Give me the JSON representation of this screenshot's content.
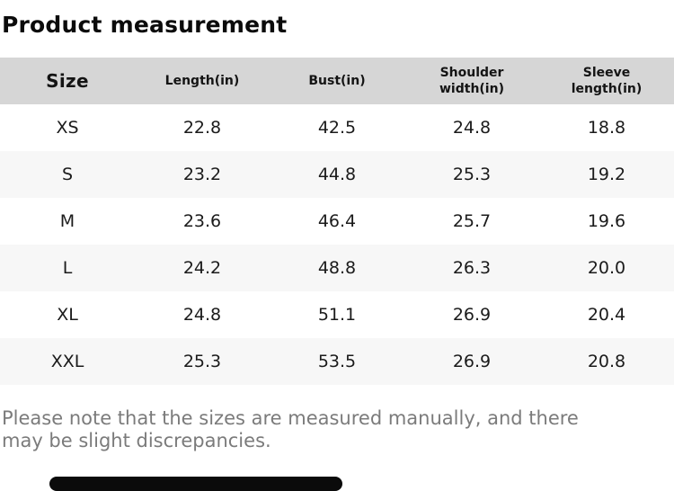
{
  "chart_data": {
    "type": "table",
    "title": "Product measurement",
    "columns": [
      "Size",
      "Length(in)",
      "Bust(in)",
      "Shoulder\nwidth(in)",
      "Sleeve\nlength(in)"
    ],
    "rows": [
      [
        "XS",
        "22.8",
        "42.5",
        "24.8",
        "18.8"
      ],
      [
        "S",
        "23.2",
        "44.8",
        "25.3",
        "19.2"
      ],
      [
        "M",
        "23.6",
        "46.4",
        "25.7",
        "19.6"
      ],
      [
        "L",
        "24.2",
        "48.8",
        "26.3",
        "20.0"
      ],
      [
        "XL",
        "24.8",
        "51.1",
        "26.9",
        "20.4"
      ],
      [
        "XXL",
        "25.3",
        "53.5",
        "26.9",
        "20.8"
      ]
    ],
    "units": "inches"
  },
  "note": {
    "line1": "Please note that the sizes are measured manually, and there",
    "line2": "may be slight discrepancies."
  },
  "colors": {
    "header_bg": "#d6d6d6",
    "stripe_bg": "#f7f7f7",
    "title_text": "#0b0b0b",
    "body_text": "#1b1b1b",
    "note_text": "#7b7b7b",
    "bottom_bar": "#0b0b0b"
  }
}
